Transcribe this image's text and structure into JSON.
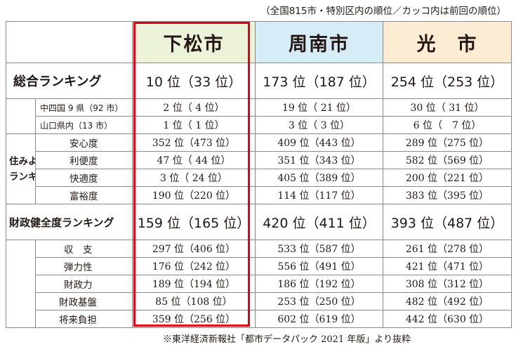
{
  "note_top": "（全国815市・特別区内の順位／カッコ内は前回の順位）",
  "note_bottom": "※東洋経済新報社「都市データパック 2021 年版」より抜粋",
  "cities": [
    "下松市",
    "周南市",
    "光　市"
  ],
  "colors": {
    "shimomatsu": "#ecf3d8",
    "shunan": "#d6edf8",
    "hikari": "#fcecd3",
    "highlight": "#e60012"
  },
  "overall": {
    "label": "総合ランキング",
    "ranks": [
      "10 位（33 位）",
      "173 位（187 位）",
      "254 位（253 位）"
    ]
  },
  "overall_sub": [
    {
      "label": "中四国 9 県（92 市）",
      "ranks": [
        "2 位（ 4 位）",
        "19 位（ 21 位）",
        "30 位（ 31 位）"
      ]
    },
    {
      "label": "山口県内（13 市）",
      "ranks": [
        "1 位（ 1 位）",
        "3 位（ 3 位）",
        "6 位（　7 位）"
      ]
    }
  ],
  "livability": {
    "label_line1": "住みよさ",
    "label_line2": "ランキング",
    "rows": [
      {
        "label": "安心度",
        "ranks": [
          "352 位（473 位）",
          "409 位（443 位）",
          "289 位（275 位）"
        ]
      },
      {
        "label": "利便度",
        "ranks": [
          "47 位（ 44 位）",
          "351 位（343 位）",
          "582 位（569 位）"
        ]
      },
      {
        "label": "快適度",
        "ranks": [
          "3 位（ 24 位）",
          "405 位（389 位）",
          "200 位（221 位）"
        ]
      },
      {
        "label": "富裕度",
        "ranks": [
          "190 位（220 位）",
          "114 位（117 位）",
          "383 位（395 位）"
        ]
      }
    ]
  },
  "finance": {
    "label": "財政健全度ランキング",
    "ranks": [
      "159 位（165 位）",
      "420 位（411 位）",
      "393 位（487 位）"
    ],
    "rows": [
      {
        "label": "収　支",
        "ranks": [
          "297 位（406 位）",
          "533 位（587 位）",
          "261 位（278 位）"
        ]
      },
      {
        "label": "弾力性",
        "ranks": [
          "176 位（242 位）",
          "556 位（491 位）",
          "421 位（471 位）"
        ]
      },
      {
        "label": "財政力",
        "ranks": [
          "189 位（194 位）",
          "186 位（192 位）",
          "308 位（312 位）"
        ]
      },
      {
        "label": "財政基盤",
        "ranks": [
          "85 位（108 位）",
          "253 位（250 位）",
          "482 位（492 位）"
        ]
      },
      {
        "label": "将来負担",
        "ranks": [
          "359 位（256 位）",
          "602 位（619 位）",
          "442 位（630 位）"
        ]
      }
    ]
  }
}
